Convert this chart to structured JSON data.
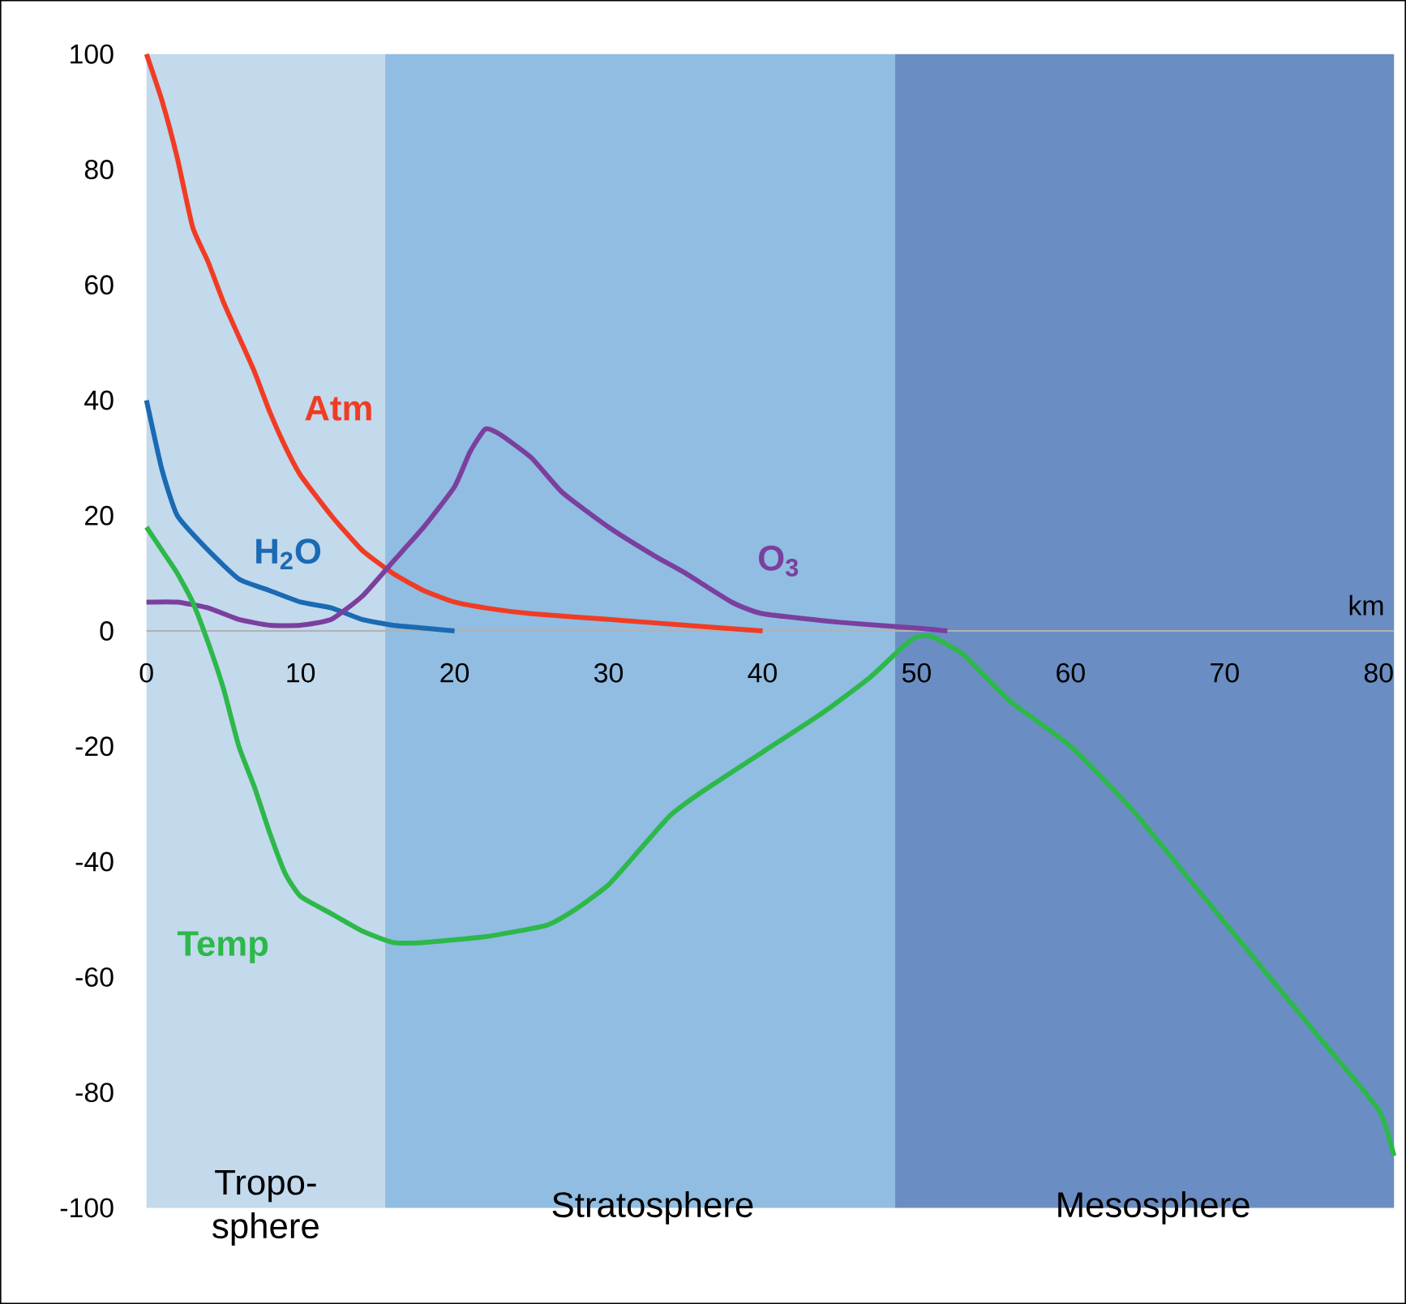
{
  "chart_data": {
    "type": "line",
    "xlabel": "km",
    "xlim": [
      0,
      81
    ],
    "ylim": [
      -100,
      100
    ],
    "xticks": [
      0,
      10,
      20,
      30,
      40,
      50,
      60,
      70,
      80
    ],
    "yticks": [
      -100,
      -80,
      -60,
      -40,
      -20,
      0,
      20,
      40,
      60,
      80,
      100
    ],
    "bands": [
      {
        "axis": "x",
        "from": 0,
        "to": 15.5,
        "label": "Tropo- sphere",
        "color": "#c3d9ec"
      },
      {
        "axis": "x",
        "from": 15.5,
        "to": 48.6,
        "label": "Stratosphere",
        "color": "#90bde1"
      },
      {
        "axis": "x",
        "from": 48.6,
        "to": 81,
        "label": "Mesosphere",
        "color": "#6a8ec3"
      }
    ],
    "series": [
      {
        "name": "Atm",
        "color": "#f03c24",
        "x": [
          0,
          1,
          2,
          3,
          4,
          5,
          6,
          7,
          8,
          9,
          10,
          12,
          14,
          16,
          18,
          20,
          22,
          25,
          30,
          35,
          40
        ],
        "values": [
          100,
          92,
          82,
          70,
          64,
          57,
          51,
          45,
          38,
          32,
          27,
          20,
          14,
          10,
          7,
          5,
          4,
          3,
          2,
          1,
          0
        ]
      },
      {
        "name": "H$_{2}$O",
        "color": "#1a6ab4",
        "x": [
          0,
          1,
          2,
          4,
          6,
          8,
          10,
          12,
          14,
          16,
          18,
          20
        ],
        "values": [
          40,
          28,
          20,
          14,
          9,
          7,
          5,
          4,
          2,
          1,
          0.5,
          0
        ]
      },
      {
        "name": "O$_{3}$",
        "color": "#7b3f9e",
        "x": [
          0,
          2,
          4,
          6,
          8,
          10,
          12,
          14,
          16,
          18,
          20,
          21,
          22,
          23,
          25,
          27,
          30,
          33,
          35,
          38,
          40,
          45,
          50,
          52
        ],
        "values": [
          5,
          5,
          4,
          2,
          1,
          1,
          2,
          6,
          12,
          18,
          25,
          31,
          35,
          34,
          30,
          24,
          18,
          13,
          10,
          5,
          3,
          1.5,
          0.5,
          0
        ]
      },
      {
        "name": "Temp",
        "color": "#2db84a",
        "x": [
          0,
          1,
          2,
          3,
          4,
          5,
          6,
          7,
          8,
          9,
          10,
          12,
          14,
          16,
          18,
          22,
          26,
          28,
          30,
          32,
          34,
          36,
          40,
          44,
          47,
          49,
          50,
          51,
          53,
          56,
          60,
          64,
          68,
          72,
          76,
          80,
          81
        ],
        "values": [
          18,
          14,
          10,
          5,
          -2,
          -10,
          -20,
          -27,
          -35,
          -42,
          -46,
          -49,
          -52,
          -54,
          -54,
          -53,
          -51,
          -48,
          -44,
          -38,
          -32,
          -28,
          -21,
          -14,
          -8,
          -3,
          -1,
          -1,
          -4,
          -12,
          -20,
          -31,
          -44,
          -57,
          -70,
          -83,
          -91
        ]
      }
    ]
  }
}
